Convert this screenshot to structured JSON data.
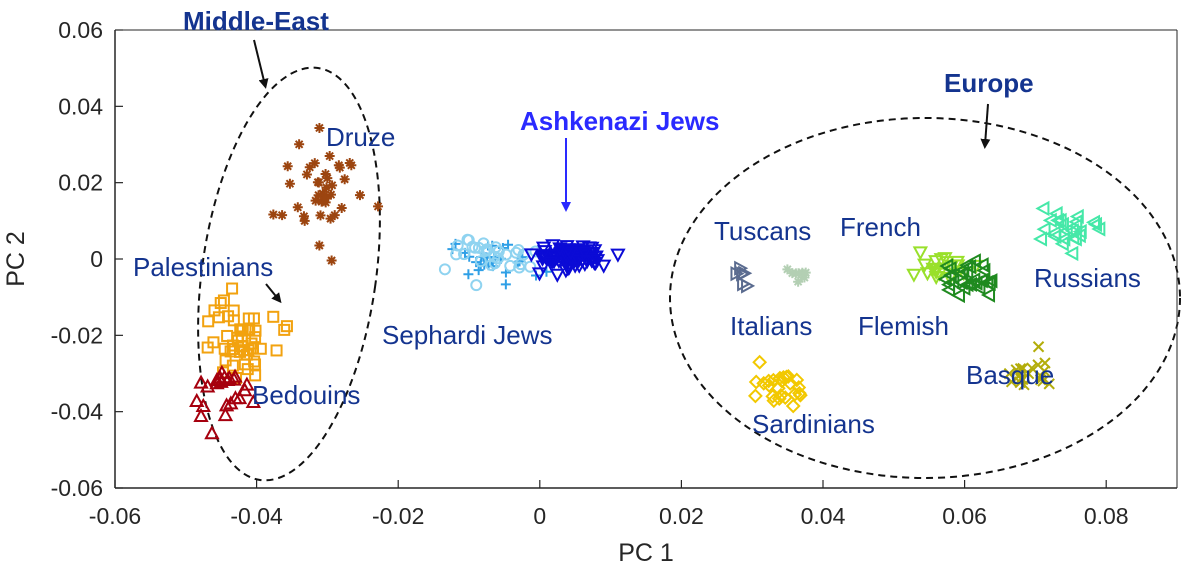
{
  "chart_data": {
    "type": "scatter",
    "xlabel": "PC 1",
    "ylabel": "PC 2",
    "xlim": [
      -0.06,
      0.09
    ],
    "ylim": [
      -0.06,
      0.06
    ],
    "xticks": [
      "-0.06",
      "-0.04",
      "-0.02",
      "0",
      "0.02",
      "0.04",
      "0.06",
      "0.08"
    ],
    "yticks": [
      "-0.06",
      "-0.04",
      "-0.02",
      "0",
      "0.02",
      "0.04",
      "0.06"
    ],
    "grid": false,
    "legend": "none",
    "series": [
      {
        "name": "Druze",
        "color": "#9c4510",
        "marker": "star",
        "center": [
          -0.0305,
          0.0185
        ],
        "spread": [
          0.0045,
          0.0125
        ],
        "count": 40
      },
      {
        "name": "Palestinians",
        "color": "#f2a20f",
        "marker": "square",
        "center": [
          -0.0425,
          -0.0205
        ],
        "spread": [
          0.0045,
          0.0095
        ],
        "count": 50
      },
      {
        "name": "Bedouins",
        "color": "#a6000e",
        "marker": "triangle-up",
        "center": [
          -0.0438,
          -0.0315
        ],
        "spread": [
          0.0035,
          0.0085
        ],
        "count": 25
      },
      {
        "name": "Sephardi Jews",
        "color": "#2e9fe6",
        "marker": "plus",
        "center": [
          -0.0065,
          -0.001
        ],
        "spread": [
          0.0045,
          0.0045
        ],
        "count": 30
      },
      {
        "name": "Sephardi Jews (open circles)",
        "color": "#8fd3f0",
        "marker": "circle",
        "center": [
          -0.007,
          0.0015
        ],
        "spread": [
          0.0055,
          0.0045
        ],
        "count": 30
      },
      {
        "name": "Ashkenazi Jews",
        "color": "#0b0bd6",
        "marker": "triangle-down",
        "center": [
          0.0045,
          0.0005
        ],
        "spread": [
          0.004,
          0.0025
        ],
        "count": 90
      },
      {
        "name": "Tuscans",
        "color": "#5a6b8f",
        "marker": "triangle-right",
        "center": [
          0.0285,
          -0.0045
        ],
        "spread": [
          0.001,
          0.002
        ],
        "count": 6
      },
      {
        "name": "Italians",
        "color": "#b3cfb3",
        "marker": "star",
        "center": [
          0.0355,
          -0.0045
        ],
        "spread": [
          0.002,
          0.002
        ],
        "count": 8
      },
      {
        "name": "Sardinians",
        "color": "#f2c800",
        "marker": "diamond",
        "center": [
          0.0335,
          -0.0335
        ],
        "spread": [
          0.0035,
          0.005
        ],
        "count": 25
      },
      {
        "name": "French",
        "color": "#99e02b",
        "marker": "triangle-down",
        "center": [
          0.0565,
          -0.0025
        ],
        "spread": [
          0.004,
          0.003
        ],
        "count": 20
      },
      {
        "name": "Flemish",
        "color": "#1f8a1f",
        "marker": "triangle-left",
        "center": [
          0.0605,
          -0.0055
        ],
        "spread": [
          0.003,
          0.0035
        ],
        "count": 30
      },
      {
        "name": "Basque",
        "color": "#b3ad0a",
        "marker": "x",
        "center": [
          0.0695,
          -0.0305
        ],
        "spread": [
          0.003,
          0.005
        ],
        "count": 20
      },
      {
        "name": "Russians",
        "color": "#45e8a8",
        "marker": "triangle-left",
        "center": [
          0.0735,
          0.0085
        ],
        "spread": [
          0.004,
          0.0035
        ],
        "count": 25
      }
    ]
  },
  "labels": {
    "druze": "Druze",
    "palestinians": "Palestinians",
    "bedouins": "Bedouins",
    "sephardi": "Sephardi Jews",
    "ashkenazi": "Ashkenazi Jews",
    "tuscans": "Tuscans",
    "italians": "Italians",
    "sardinians": "Sardinians",
    "french": "French",
    "flemish": "Flemish",
    "basque": "Basque",
    "russians": "Russians",
    "middle_east": "Middle-East",
    "europe": "Europe"
  },
  "colors": {
    "label_text": "#14348f",
    "middle_east_title": "#14348f",
    "europe_title": "#14348f",
    "ashkenazi_title": "#2a2aff",
    "axis": "#262626"
  }
}
